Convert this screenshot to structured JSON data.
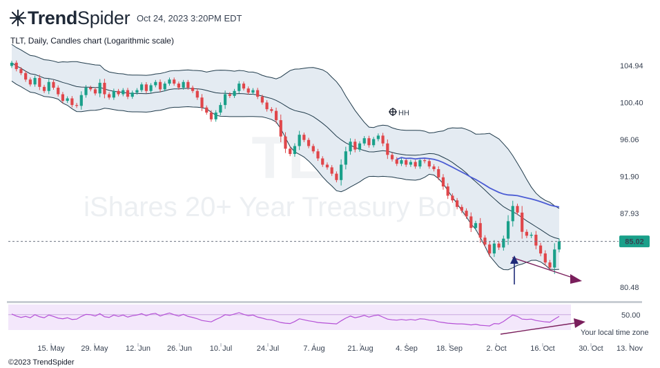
{
  "header": {
    "brand_trend": "Trend",
    "brand_spider": "Spider",
    "timestamp": "Oct 24, 2023 3:20PM EDT",
    "subtitle": "TLT, Daily, Candles chart (Logarithmic scale)",
    "copyright": "©2023 TrendSpider"
  },
  "colors": {
    "up": "#1aa08a",
    "down": "#e0464a",
    "band_fill": "#e4ebf2",
    "band_line": "#1f3a4a",
    "blue_ma": "#4a5bd4",
    "annotation": "#7a1f5c",
    "arrow": "#1e2a78",
    "rsi_fill": "#f3e7fb",
    "rsi_line": "#b44fd6",
    "price_badge": "#1aa08a"
  },
  "chart_data": [
    {
      "type": "candlestick",
      "symbol": "TLT",
      "interval": "Daily",
      "scale": "logarithmic",
      "watermark_symbol": "TLT",
      "watermark_name": "iShares 20+ Year Treasury Bond ETF",
      "y_ticks": [
        "104.94",
        "100.40",
        "96.06",
        "91.90",
        "87.93",
        "80.48"
      ],
      "y_tick_values": [
        104.94,
        100.4,
        96.06,
        91.9,
        87.93,
        80.48
      ],
      "last_price": "85.02",
      "last_price_value": 85.02,
      "x_ticks": [
        "15. May",
        "29. May",
        "12. Jun",
        "26. Jun",
        "10. Jul",
        "24. Jul",
        "7. Aug",
        "21. Aug",
        "4. Sep",
        "18. Sep",
        "2. Oct",
        "16. Oct",
        "30. Oct",
        "13. Nov"
      ],
      "annotation_label": "HH",
      "legend_note": "Your local time zone",
      "closes": [
        105.3,
        104.5,
        104.0,
        103.2,
        102.6,
        103.4,
        102.3,
        101.8,
        102.9,
        102.2,
        101.4,
        100.6,
        100.9,
        100.1,
        100.0,
        101.3,
        102.2,
        102.0,
        101.5,
        102.8,
        101.4,
        101.0,
        101.8,
        101.4,
        101.9,
        101.1,
        101.6,
        101.9,
        102.6,
        101.8,
        102.5,
        102.9,
        102.0,
        102.7,
        103.2,
        102.7,
        102.2,
        102.9,
        102.2,
        101.8,
        101.0,
        99.8,
        99.2,
        98.4,
        99.2,
        100.1,
        101.4,
        101.2,
        101.8,
        102.7,
        102.1,
        101.6,
        101.9,
        101.1,
        100.4,
        99.6,
        99.4,
        98.3,
        96.4,
        95.0,
        94.4,
        95.3,
        96.6,
        96.0,
        95.3,
        94.7,
        93.9,
        93.2,
        92.9,
        92.2,
        91.5,
        93.2,
        94.7,
        95.8,
        94.9,
        95.6,
        96.2,
        95.4,
        96.1,
        96.5,
        95.6,
        94.3,
        93.8,
        93.3,
        93.7,
        93.2,
        93.5,
        93.0,
        93.7,
        93.6,
        93.0,
        92.7,
        91.8,
        90.8,
        89.8,
        89.3,
        88.6,
        88.2,
        87.6,
        86.4,
        86.9,
        85.4,
        84.7,
        83.8,
        84.8,
        84.4,
        85.3,
        87.1,
        88.7,
        88.0,
        86.0,
        85.6,
        85.7,
        84.6,
        83.8,
        82.9,
        82.4,
        84.2,
        85.02
      ],
      "rsi": {
        "level_label": "50.00",
        "level_value": 50,
        "values": [
          52,
          46,
          42,
          45,
          41,
          50,
          44,
          41,
          49,
          45,
          40,
          38,
          41,
          36,
          37,
          45,
          51,
          50,
          46,
          53,
          44,
          42,
          49,
          45,
          49,
          43,
          47,
          49,
          53,
          47,
          52,
          54,
          46,
          51,
          55,
          50,
          46,
          51,
          45,
          42,
          38,
          33,
          31,
          29,
          36,
          42,
          50,
          48,
          52,
          56,
          51,
          47,
          49,
          43,
          40,
          36,
          35,
          31,
          27,
          25,
          24,
          30,
          38,
          35,
          32,
          30,
          27,
          26,
          25,
          24,
          23,
          32,
          40,
          46,
          41,
          44,
          48,
          43,
          47,
          49,
          43,
          37,
          35,
          34,
          36,
          34,
          36,
          34,
          38,
          37,
          34,
          33,
          29,
          27,
          25,
          24,
          23,
          23,
          22,
          20,
          22,
          19,
          18,
          17,
          24,
          23,
          30,
          40,
          49,
          45,
          37,
          36,
          37,
          33,
          31,
          29,
          28,
          37,
          45
        ]
      }
    }
  ]
}
